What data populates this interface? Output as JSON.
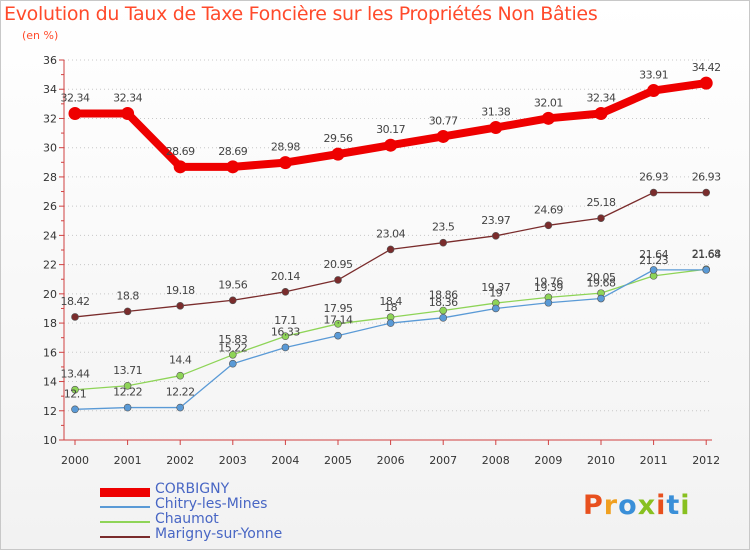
{
  "title": "Evolution du Taux de Taxe Foncière sur les Propriétés Non Bâties",
  "subtitle": "(en %)",
  "logo": {
    "text": "Proxiti",
    "colors": [
      "#e8501e",
      "#f0a020",
      "#3a8fd8",
      "#88c020",
      "#e8501e",
      "#3a8fd8",
      "#88c020"
    ]
  },
  "chart_data": {
    "type": "line",
    "title": "Evolution du Taux de Taxe Foncière sur les Propriétés Non Bâties",
    "ylabel": "(en %)",
    "xlabel": "",
    "x": [
      "2000",
      "2001",
      "2002",
      "2003",
      "2004",
      "2005",
      "2006",
      "2007",
      "2008",
      "2009",
      "2010",
      "2011",
      "2012"
    ],
    "ylim": [
      10,
      36
    ],
    "yticks": [
      "10",
      "12",
      "14",
      "16",
      "18",
      "20",
      "22",
      "24",
      "26",
      "28",
      "30",
      "32",
      "34",
      "36"
    ],
    "grid": "horizontal dotted",
    "legend_position": "bottom-left",
    "series": [
      {
        "name": "CORBIGNY",
        "color": "#ee0000",
        "values": [
          32.34,
          32.34,
          28.69,
          28.69,
          28.98,
          29.56,
          30.17,
          30.77,
          31.38,
          32.01,
          32.34,
          33.91,
          34.42
        ],
        "labels": [
          "32.34",
          "32.34",
          "28.69",
          "28.69",
          "28.98",
          "29.56",
          "30.17",
          "30.77",
          "31.38",
          "32.01",
          "32.34",
          "33.91",
          "34.42"
        ]
      },
      {
        "name": "Chitry-les-Mines",
        "color": "#5a9ad6",
        "values": [
          12.1,
          12.22,
          12.22,
          15.22,
          16.33,
          17.14,
          18.0,
          18.36,
          19.0,
          19.39,
          19.68,
          21.64,
          21.64
        ],
        "labels": [
          "12.1",
          "12.22",
          "12.22",
          "15.22",
          "16.33",
          "17.14",
          "18",
          "18.36",
          "19",
          "19.39",
          "19.68",
          "21.64",
          "21.64"
        ]
      },
      {
        "name": "Chaumot",
        "color": "#8ed457",
        "values": [
          13.44,
          13.71,
          14.4,
          15.83,
          17.1,
          17.95,
          18.4,
          18.86,
          19.37,
          19.76,
          20.05,
          21.23,
          21.68
        ],
        "labels": [
          "13.44",
          "13.71",
          "14.4",
          "15.83",
          "17.1",
          "17.95",
          "18.4",
          "18.86",
          "19.37",
          "19.76",
          "20.05",
          "21.23",
          "21.68"
        ]
      },
      {
        "name": "Marigny-sur-Yonne",
        "color": "#7a2c2c",
        "values": [
          18.42,
          18.8,
          19.18,
          19.56,
          20.14,
          20.95,
          23.04,
          23.5,
          23.97,
          24.69,
          25.18,
          26.93,
          26.93
        ],
        "labels": [
          "18.42",
          "18.8",
          "19.18",
          "19.56",
          "20.14",
          "20.95",
          "23.04",
          "23.5",
          "23.97",
          "24.69",
          "25.18",
          "26.93",
          "26.93"
        ]
      }
    ]
  }
}
